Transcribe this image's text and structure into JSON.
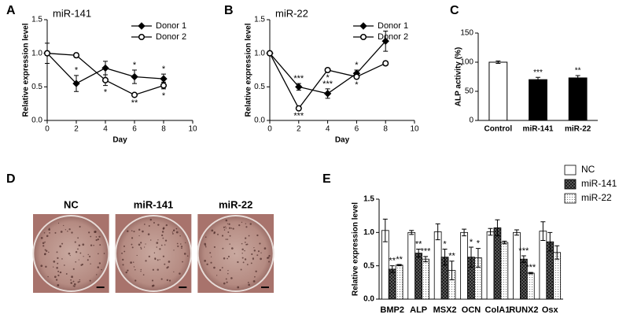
{
  "chart_data": [
    {
      "type": "line",
      "panel": "A",
      "title": "miR-141",
      "xlabel": "Day",
      "ylabel": "Relative expression level",
      "x": [
        0,
        2,
        4,
        6,
        8
      ],
      "xlim": [
        0,
        10
      ],
      "xticks": [
        0,
        2,
        4,
        6,
        8,
        10
      ],
      "ylim": [
        0,
        1.5
      ],
      "yticks": [
        {
          "value": 0,
          "label": "0.0"
        },
        {
          "value": 0.5,
          "label": "0.5"
        },
        {
          "value": 1,
          "label": "1.0"
        },
        {
          "value": 1.5,
          "label": "1.5"
        }
      ],
      "legend": "upper right",
      "series": [
        {
          "name": "Donor 1",
          "color": "#000000",
          "marker": "diamond",
          "values": [
            1.0,
            0.55,
            0.78,
            0.65,
            0.62
          ],
          "errors": [
            0.15,
            0.12,
            0.1,
            0.1,
            0.07
          ],
          "significance": [
            null,
            "*",
            null,
            "*",
            "*"
          ]
        },
        {
          "name": "Donor 2",
          "color": "#000000",
          "marker": "circle",
          "values": [
            1.0,
            0.97,
            0.6,
            0.38,
            0.52
          ],
          "errors": [
            0.03,
            0.03,
            0.08,
            0.02,
            0.05
          ],
          "significance": [
            null,
            null,
            "*",
            "**",
            "*"
          ]
        }
      ]
    },
    {
      "type": "line",
      "panel": "B",
      "title": "miR-22",
      "xlabel": "Day",
      "ylabel": "Relative expression level",
      "x": [
        0,
        2,
        4,
        6,
        8
      ],
      "xlim": [
        0,
        10
      ],
      "xticks": [
        0,
        2,
        4,
        6,
        8,
        10
      ],
      "ylim": [
        0,
        1.5
      ],
      "yticks": [
        {
          "value": 0,
          "label": "0.0"
        },
        {
          "value": 0.5,
          "label": "0.5"
        },
        {
          "value": 1,
          "label": "1.0"
        },
        {
          "value": 1.5,
          "label": "1.5"
        }
      ],
      "legend": "upper right",
      "series": [
        {
          "name": "Donor 1",
          "color": "#000000",
          "marker": "diamond",
          "values": [
            1.0,
            0.5,
            0.4,
            0.7,
            1.18
          ],
          "errors": [
            0.03,
            0.05,
            0.07,
            0.05,
            0.15
          ],
          "significance": [
            null,
            "***",
            "***",
            "*",
            null
          ]
        },
        {
          "name": "Donor 2",
          "color": "#000000",
          "marker": "circle",
          "values": [
            1.0,
            0.18,
            0.75,
            0.65,
            0.85
          ],
          "errors": [
            0.02,
            0.01,
            0.01,
            0.02,
            0.03
          ],
          "significance": [
            null,
            "***",
            "*",
            "*",
            null
          ]
        }
      ]
    },
    {
      "type": "bar",
      "panel": "C",
      "ylabel": "ALP activity (%)",
      "categories": [
        "Control",
        "miR-141",
        "miR-22"
      ],
      "values": [
        100,
        70,
        73
      ],
      "errors": [
        2,
        4,
        4
      ],
      "colors": [
        "#ffffff",
        "#000000",
        "#000000"
      ],
      "significance": [
        null,
        "***",
        "**"
      ],
      "ylim": [
        0,
        150
      ],
      "yticks": [
        0,
        50,
        100,
        150
      ]
    },
    {
      "type": "image",
      "panel": "D",
      "labels": [
        "NC",
        "miR-141",
        "miR-22"
      ]
    },
    {
      "type": "grouped-bar",
      "panel": "E",
      "ylabel": "Relative expression level",
      "categories": [
        "BMP2",
        "ALP",
        "MSX2",
        "OCN",
        "ColA1",
        "RUNX2",
        "Osx"
      ],
      "ylim": [
        0,
        1.5
      ],
      "yticks": [
        {
          "value": 0,
          "label": "0.0"
        },
        {
          "value": 0.5,
          "label": "0.5"
        },
        {
          "value": 1,
          "label": "1.0"
        },
        {
          "value": 1.5,
          "label": "1.5"
        }
      ],
      "legend": "upper right",
      "series": [
        {
          "name": "NC",
          "color": "#ffffff",
          "pattern": null,
          "values": [
            1.03,
            1.0,
            1.01,
            1.0,
            1.01,
            1.0,
            1.02
          ],
          "errors": [
            0.17,
            0.03,
            0.12,
            0.05,
            0.05,
            0.04,
            0.14
          ],
          "significance": [
            null,
            null,
            null,
            null,
            null,
            null,
            null
          ]
        },
        {
          "name": "miR-141",
          "color": "#555555",
          "pattern": "crosshatch",
          "values": [
            0.45,
            0.69,
            0.63,
            0.63,
            1.07,
            0.6,
            0.86
          ],
          "errors": [
            0.05,
            0.06,
            0.12,
            0.15,
            0.12,
            0.05,
            0.14
          ],
          "significance": [
            "**",
            "**",
            "*",
            "*",
            null,
            "***",
            null
          ]
        },
        {
          "name": "miR-22",
          "color": "#dddddd",
          "pattern": "dots",
          "values": [
            0.51,
            0.6,
            0.43,
            0.62,
            0.85,
            0.39,
            0.7
          ],
          "errors": [
            0.01,
            0.04,
            0.14,
            0.14,
            0.02,
            0.01,
            0.1
          ],
          "significance": [
            "**",
            "***",
            "**",
            "*",
            null,
            "***",
            null
          ]
        }
      ]
    }
  ]
}
